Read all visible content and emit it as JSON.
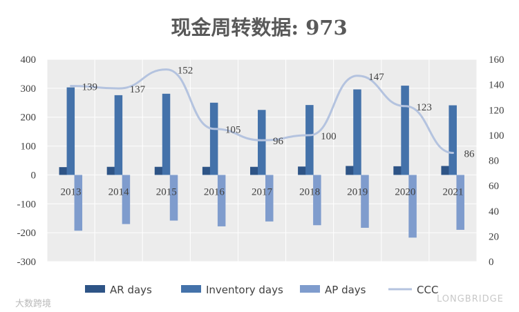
{
  "chart_data": {
    "type": "bar",
    "title": "现金周转数据: 973",
    "categories": [
      "2013",
      "2014",
      "2015",
      "2016",
      "2017",
      "2018",
      "2019",
      "2020",
      "2021"
    ],
    "series": [
      {
        "name": "AR days",
        "type": "bar",
        "axis": "left",
        "color": "#2e5486",
        "values": [
          27,
          28,
          28,
          28,
          28,
          29,
          31,
          30,
          31
        ]
      },
      {
        "name": "Inventory days",
        "type": "bar",
        "axis": "left",
        "color": "#4472aa",
        "values": [
          303,
          276,
          281,
          250,
          225,
          242,
          296,
          309,
          241
        ]
      },
      {
        "name": "AP days",
        "type": "bar",
        "axis": "left",
        "color": "#7f9ccd",
        "values": [
          -193,
          -170,
          -158,
          -178,
          -161,
          -174,
          -183,
          -217,
          -190
        ]
      },
      {
        "name": "CCC",
        "type": "line",
        "axis": "right",
        "color": "#b4c3df",
        "values": [
          139,
          137,
          152,
          105,
          96,
          100,
          147,
          123,
          86
        ],
        "data_labels": [
          "139",
          "137",
          "152",
          "105",
          "96",
          "100",
          "147",
          "123",
          "86"
        ]
      }
    ],
    "y_left": {
      "min": -300,
      "max": 400,
      "ticks": [
        400,
        300,
        200,
        100,
        0,
        -100,
        -200,
        -300
      ]
    },
    "y_right": {
      "min": 0,
      "max": 160,
      "ticks": [
        160,
        140,
        120,
        100,
        80,
        60,
        40,
        20,
        0
      ]
    },
    "grid": true,
    "legend_position": "bottom"
  },
  "watermarks": {
    "left": "大数跨境",
    "right": "LONGBRIDGE"
  }
}
